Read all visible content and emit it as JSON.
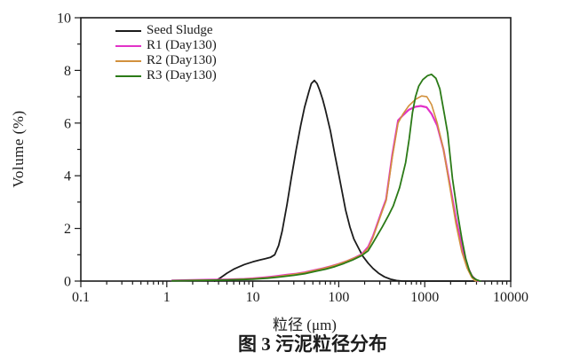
{
  "figure": {
    "y_axis_title": "Volume (%)",
    "x_axis_title": "粒径 (μm)",
    "caption": "图 3 污泥粒径分布"
  },
  "legend": {
    "items": [
      {
        "label": "Seed Sludge",
        "color": "#1c1c1c"
      },
      {
        "label": "R1 (Day130)",
        "color": "#e232c8"
      },
      {
        "label": "R2 (Day130)",
        "color": "#d2913d"
      },
      {
        "label": "R3 (Day130)",
        "color": "#2b7a17"
      }
    ]
  },
  "chart_data": {
    "type": "line",
    "title": "图 3 污泥粒径分布",
    "xlabel": "粒径 (μm)",
    "ylabel": "Volume (%)",
    "x_scale": "log",
    "xlim": [
      0.1,
      10000
    ],
    "ylim": [
      0,
      10
    ],
    "x_ticks": [
      0.1,
      1,
      10,
      100,
      1000,
      10000
    ],
    "x_tick_labels": [
      "0.1",
      "1",
      "10",
      "100",
      "1000",
      "10000"
    ],
    "y_ticks": [
      0,
      2,
      4,
      6,
      8,
      10
    ],
    "y_minor_ticks": [
      1,
      3,
      5,
      7,
      9
    ],
    "grid": false,
    "legend_position": "top-left",
    "frame_color": "#1c1c1c",
    "series": [
      {
        "name": "Seed Sludge",
        "color": "#1c1c1c",
        "width": 1.8,
        "points": [
          [
            3.6,
            0
          ],
          [
            4.2,
            0.12
          ],
          [
            5,
            0.3
          ],
          [
            6,
            0.45
          ],
          [
            7,
            0.55
          ],
          [
            8,
            0.63
          ],
          [
            10,
            0.73
          ],
          [
            12,
            0.8
          ],
          [
            14,
            0.85
          ],
          [
            16,
            0.9
          ],
          [
            18,
            1.0
          ],
          [
            20,
            1.35
          ],
          [
            22,
            1.9
          ],
          [
            25,
            2.9
          ],
          [
            28,
            3.9
          ],
          [
            32,
            5.0
          ],
          [
            36,
            5.9
          ],
          [
            40,
            6.6
          ],
          [
            45,
            7.2
          ],
          [
            48,
            7.5
          ],
          [
            52,
            7.62
          ],
          [
            56,
            7.5
          ],
          [
            60,
            7.25
          ],
          [
            65,
            6.9
          ],
          [
            70,
            6.5
          ],
          [
            80,
            5.7
          ],
          [
            90,
            4.8
          ],
          [
            100,
            4.05
          ],
          [
            110,
            3.35
          ],
          [
            120,
            2.7
          ],
          [
            135,
            2.05
          ],
          [
            150,
            1.6
          ],
          [
            170,
            1.25
          ],
          [
            190,
            0.95
          ],
          [
            220,
            0.68
          ],
          [
            250,
            0.48
          ],
          [
            290,
            0.3
          ],
          [
            340,
            0.16
          ],
          [
            400,
            0.07
          ],
          [
            470,
            0.02
          ],
          [
            550,
            0
          ],
          [
            3800,
            0
          ]
        ]
      },
      {
        "name": "R1 (Day130)",
        "color": "#e232c8",
        "width": 2.2,
        "points": [
          [
            1.15,
            0.02
          ],
          [
            2,
            0.04
          ],
          [
            3,
            0.05
          ],
          [
            5,
            0.06
          ],
          [
            8,
            0.08
          ],
          [
            10,
            0.1
          ],
          [
            13,
            0.13
          ],
          [
            16,
            0.16
          ],
          [
            20,
            0.2
          ],
          [
            25,
            0.24
          ],
          [
            32,
            0.28
          ],
          [
            40,
            0.33
          ],
          [
            50,
            0.4
          ],
          [
            65,
            0.48
          ],
          [
            80,
            0.56
          ],
          [
            100,
            0.65
          ],
          [
            125,
            0.76
          ],
          [
            150,
            0.87
          ],
          [
            185,
            1.02
          ],
          [
            220,
            1.3
          ],
          [
            250,
            1.7
          ],
          [
            320,
            2.7
          ],
          [
            355,
            3.1
          ],
          [
            420,
            4.8
          ],
          [
            490,
            6.1
          ],
          [
            560,
            6.3
          ],
          [
            650,
            6.5
          ],
          [
            780,
            6.62
          ],
          [
            900,
            6.65
          ],
          [
            1050,
            6.6
          ],
          [
            1200,
            6.35
          ],
          [
            1400,
            5.9
          ],
          [
            1650,
            5.0
          ],
          [
            1950,
            3.7
          ],
          [
            2300,
            2.4
          ],
          [
            2700,
            1.3
          ],
          [
            3100,
            0.6
          ],
          [
            3500,
            0.22
          ],
          [
            3900,
            0.05
          ],
          [
            4200,
            0
          ]
        ]
      },
      {
        "name": "R2 (Day130)",
        "color": "#d2913d",
        "width": 1.6,
        "points": [
          [
            1.15,
            0.01
          ],
          [
            2,
            0.03
          ],
          [
            5,
            0.05
          ],
          [
            10,
            0.09
          ],
          [
            15,
            0.13
          ],
          [
            20,
            0.18
          ],
          [
            30,
            0.26
          ],
          [
            40,
            0.32
          ],
          [
            55,
            0.42
          ],
          [
            70,
            0.5
          ],
          [
            90,
            0.6
          ],
          [
            115,
            0.72
          ],
          [
            145,
            0.85
          ],
          [
            185,
            1.0
          ],
          [
            220,
            1.25
          ],
          [
            250,
            1.65
          ],
          [
            320,
            2.65
          ],
          [
            355,
            3.05
          ],
          [
            420,
            4.7
          ],
          [
            490,
            6.0
          ],
          [
            560,
            6.35
          ],
          [
            650,
            6.65
          ],
          [
            780,
            6.9
          ],
          [
            920,
            7.03
          ],
          [
            1060,
            7.0
          ],
          [
            1200,
            6.7
          ],
          [
            1400,
            6.0
          ],
          [
            1650,
            5.0
          ],
          [
            1950,
            3.6
          ],
          [
            2300,
            2.2
          ],
          [
            2700,
            1.1
          ],
          [
            3100,
            0.5
          ],
          [
            3500,
            0.15
          ],
          [
            3800,
            0.02
          ],
          [
            4000,
            0
          ]
        ]
      },
      {
        "name": "R3 (Day130)",
        "color": "#2b7a17",
        "width": 1.8,
        "points": [
          [
            1.15,
            0.01
          ],
          [
            2,
            0.02
          ],
          [
            5,
            0.04
          ],
          [
            10,
            0.07
          ],
          [
            15,
            0.11
          ],
          [
            20,
            0.15
          ],
          [
            30,
            0.22
          ],
          [
            40,
            0.28
          ],
          [
            55,
            0.38
          ],
          [
            70,
            0.45
          ],
          [
            90,
            0.55
          ],
          [
            115,
            0.67
          ],
          [
            145,
            0.8
          ],
          [
            185,
            0.97
          ],
          [
            220,
            1.15
          ],
          [
            250,
            1.45
          ],
          [
            320,
            2.05
          ],
          [
            380,
            2.5
          ],
          [
            430,
            2.85
          ],
          [
            510,
            3.55
          ],
          [
            600,
            4.5
          ],
          [
            660,
            5.4
          ],
          [
            720,
            6.4
          ],
          [
            780,
            7.0
          ],
          [
            850,
            7.4
          ],
          [
            950,
            7.65
          ],
          [
            1080,
            7.8
          ],
          [
            1200,
            7.85
          ],
          [
            1350,
            7.7
          ],
          [
            1500,
            7.3
          ],
          [
            1700,
            6.3
          ],
          [
            1850,
            5.6
          ],
          [
            2100,
            3.9
          ],
          [
            2400,
            2.6
          ],
          [
            2700,
            1.6
          ],
          [
            3000,
            0.85
          ],
          [
            3300,
            0.4
          ],
          [
            3600,
            0.15
          ],
          [
            4000,
            0.05
          ],
          [
            4400,
            0
          ]
        ]
      }
    ]
  }
}
